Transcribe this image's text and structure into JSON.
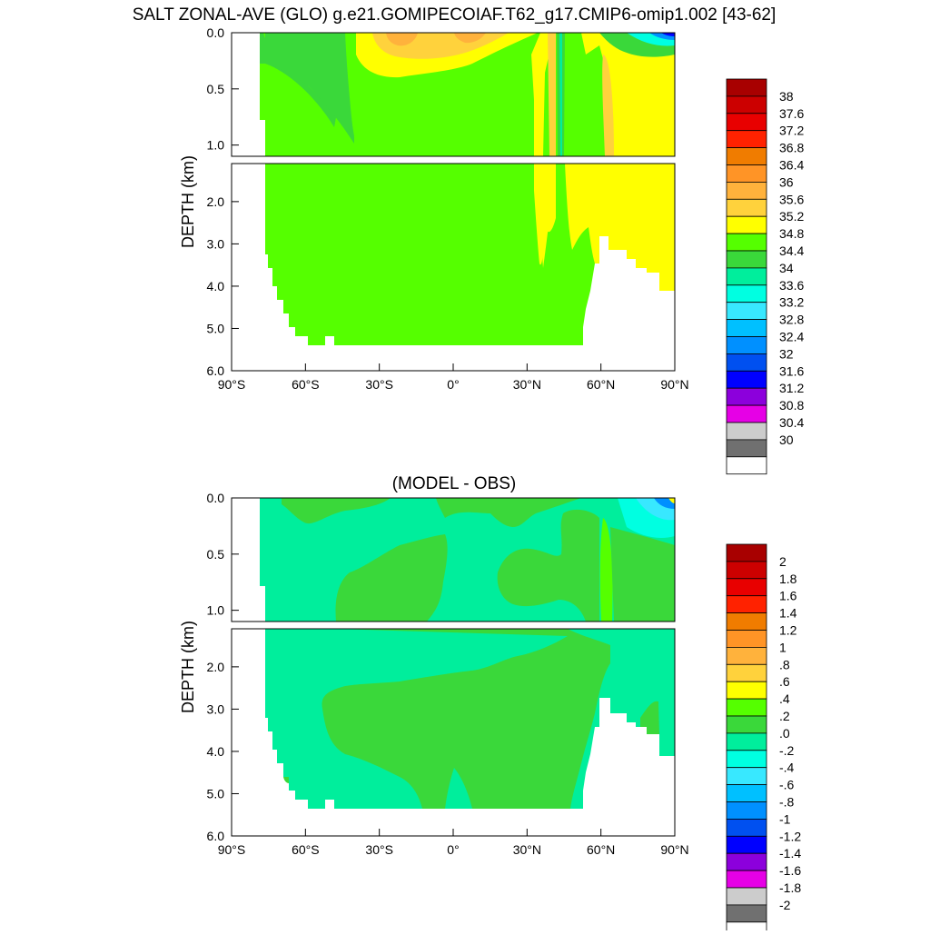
{
  "title": "SALT ZONAL-AVE (GLO) g.e21.GOMIPECOIAF.T62_g17.CMIP6-omip1.002 [43-62]",
  "chart_data": [
    {
      "type": "contour",
      "title": "",
      "ylabel": "DEPTH (km)",
      "xlabel": "",
      "x_ticks": [
        "90°S",
        "60°S",
        "30°S",
        "0°",
        "30°N",
        "60°N",
        "90°N"
      ],
      "x_tick_values": [
        -90,
        -60,
        -30,
        0,
        30,
        60,
        90
      ],
      "upper_y_ticks": [
        "0.0",
        "0.5",
        "1.0"
      ],
      "upper_y_values": [
        0.0,
        0.5,
        1.0
      ],
      "lower_y_ticks": [
        "2.0",
        "3.0",
        "4.0",
        "5.0",
        "6.0"
      ],
      "lower_y_values": [
        2.0,
        3.0,
        4.0,
        5.0,
        6.0
      ],
      "upper_ylim": [
        0,
        1.1
      ],
      "lower_ylim": [
        1.1,
        6.0
      ],
      "xlim": [
        -90,
        90
      ],
      "colorbar": {
        "labels": [
          "38",
          "37.6",
          "37.2",
          "36.8",
          "36.4",
          "36",
          "35.6",
          "35.2",
          "34.8",
          "34.4",
          "34",
          "33.6",
          "33.2",
          "32.8",
          "32.4",
          "32",
          "31.6",
          "31.2",
          "30.8",
          "30.4",
          "30"
        ],
        "colors": [
          "#a80000",
          "#cc0000",
          "#e80000",
          "#ff2200",
          "#f07c00",
          "#ff9426",
          "#ffb23c",
          "#ffd23c",
          "#ffff00",
          "#55ff00",
          "#3ad83a",
          "#00ee9c",
          "#00ffe1",
          "#38e8ff",
          "#00c0ff",
          "#0090ff",
          "#0050f0",
          "#0000ff",
          "#8c00dc",
          "#e600e6",
          "#cccccc",
          "#707070",
          "#ffffff"
        ]
      }
    },
    {
      "type": "contour",
      "title": "(MODEL - OBS)",
      "ylabel": "DEPTH (km)",
      "xlabel": "",
      "x_ticks": [
        "90°S",
        "60°S",
        "30°S",
        "0°",
        "30°N",
        "60°N",
        "90°N"
      ],
      "x_tick_values": [
        -90,
        -60,
        -30,
        0,
        30,
        60,
        90
      ],
      "upper_y_ticks": [
        "0.0",
        "0.5",
        "1.0"
      ],
      "upper_y_values": [
        0.0,
        0.5,
        1.0
      ],
      "lower_y_ticks": [
        "2.0",
        "3.0",
        "4.0",
        "5.0",
        "6.0"
      ],
      "lower_y_values": [
        2.0,
        3.0,
        4.0,
        5.0,
        6.0
      ],
      "upper_ylim": [
        0,
        1.1
      ],
      "lower_ylim": [
        1.1,
        6.0
      ],
      "xlim": [
        -90,
        90
      ],
      "colorbar": {
        "labels": [
          "2",
          "1.8",
          "1.6",
          "1.4",
          "1.2",
          "1",
          ".8",
          ".6",
          ".4",
          ".2",
          ".0",
          "-.2",
          "-.4",
          "-.6",
          "-.8",
          "-1",
          "-1.2",
          "-1.4",
          "-1.6",
          "-1.8",
          "-2"
        ],
        "colors": [
          "#a80000",
          "#cc0000",
          "#e80000",
          "#ff2200",
          "#f07c00",
          "#ff9426",
          "#ffb23c",
          "#ffd23c",
          "#ffff00",
          "#55ff00",
          "#3ad83a",
          "#00ee9c",
          "#00ffe1",
          "#38e8ff",
          "#00c0ff",
          "#0090ff",
          "#0050f0",
          "#0000ff",
          "#8c00dc",
          "#e600e6",
          "#cccccc",
          "#707070",
          "#ffffff"
        ]
      }
    }
  ]
}
